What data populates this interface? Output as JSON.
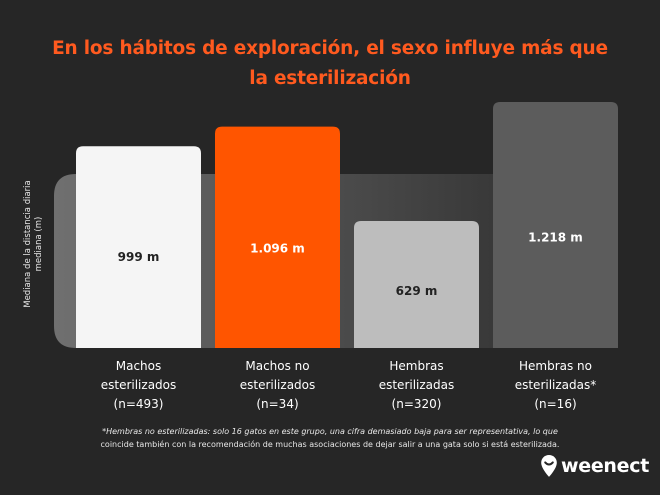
{
  "title_line1": "En los hábitos de exploración, el sexo influye más que",
  "title_line2": "la esterilización",
  "chart_data": {
    "type": "bar",
    "ylabel_line1": "Mediana de la distancia diaria",
    "ylabel_line2": "mediana (m)",
    "ylim": [
      0,
      1250
    ],
    "categories": [
      [
        "Machos",
        "esterilizados",
        "(n=493)"
      ],
      [
        "Machos no",
        "esterilizados",
        "(n=34)"
      ],
      [
        "Hembras",
        "esterilizadas",
        "(n=320)"
      ],
      [
        "Hembras no",
        "esterilizadas*",
        "(n=16)"
      ]
    ],
    "values": [
      999,
      1096,
      629,
      1218
    ],
    "data_labels": [
      "999 m",
      "1.096 m",
      "629 m",
      "1.218 m"
    ],
    "colors": [
      "#f5f5f5",
      "#ff5500",
      "#bdbdbd",
      "#5c5c5c"
    ],
    "label_colors": [
      "#222222",
      "#ffffff",
      "#222222",
      "#ffffff"
    ]
  },
  "footnote": {
    "line1": "*Hembras no esterilizadas: solo 16 gatos en este grupo, una cifra demasiado baja para ser representativa, lo que",
    "line2": "coincide también con la recomendación de muchas asociaciones de dejar salir a una gata solo si está esterilizada."
  },
  "logo": {
    "text": "weenect",
    "icon": "location-pin-icon"
  }
}
